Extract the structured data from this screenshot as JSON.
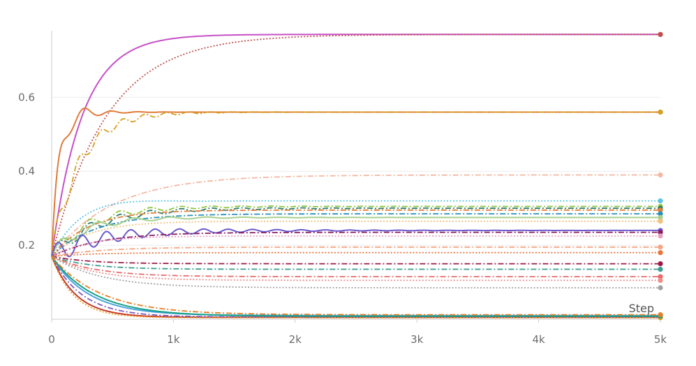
{
  "chart_data": {
    "type": "line",
    "title": "",
    "xlabel": "Step",
    "ylabel": "",
    "xlim": [
      0,
      5000
    ],
    "ylim": [
      0,
      0.78
    ],
    "x_ticks": [
      {
        "value": 0,
        "label": "0"
      },
      {
        "value": 1000,
        "label": "1k"
      },
      {
        "value": 2000,
        "label": "2k"
      },
      {
        "value": 3000,
        "label": "3k"
      },
      {
        "value": 4000,
        "label": "4k"
      },
      {
        "value": 5000,
        "label": "5k"
      }
    ],
    "y_ticks": [
      {
        "value": 0.2,
        "label": "0.2"
      },
      {
        "value": 0.4,
        "label": "0.4"
      },
      {
        "value": 0.6,
        "label": "0.6"
      }
    ],
    "grid": "horizontal",
    "legend": "none",
    "start_value": 0.17,
    "series": [
      {
        "color": "#c64fc6",
        "style": "solid",
        "final": 0.77,
        "tau": 250,
        "peak": 0.0,
        "osc": 0.0,
        "period": 0
      },
      {
        "color": "#c0504d",
        "style": "dotted",
        "final": 0.77,
        "tau": 450,
        "peak": 0.0,
        "osc": 0.0,
        "period": 0
      },
      {
        "color": "#e07b39",
        "style": "solid",
        "final": 0.56,
        "tau": 80,
        "peak": 0.07,
        "osc": 0.06,
        "period": 220
      },
      {
        "color": "#d4a020",
        "style": "dashdot",
        "final": 0.56,
        "tau": 220,
        "peak": 0.0,
        "osc": 0.03,
        "period": 180
      },
      {
        "color": "#f2b8a2",
        "style": "dashdot",
        "final": 0.39,
        "tau": 500,
        "peak": 0.0,
        "osc": 0.0,
        "period": 0
      },
      {
        "color": "#5bc4e6",
        "style": "dotted",
        "final": 0.32,
        "tau": 250,
        "peak": 0.03,
        "osc": 0.0,
        "period": 0
      },
      {
        "color": "#8dc63f",
        "style": "dashdot",
        "final": 0.305,
        "tau": 300,
        "peak": 0.0,
        "osc": 0.02,
        "period": 250
      },
      {
        "color": "#2e7d6b",
        "style": "dashdot",
        "final": 0.3,
        "tau": 350,
        "peak": 0.0,
        "osc": 0.02,
        "period": 250
      },
      {
        "color": "#e0803a",
        "style": "dashdot",
        "final": 0.295,
        "tau": 300,
        "peak": 0.0,
        "osc": 0.0,
        "period": 0
      },
      {
        "color": "#2a8fb8",
        "style": "dashdot",
        "final": 0.285,
        "tau": 350,
        "peak": 0.0,
        "osc": 0.0,
        "period": 0
      },
      {
        "color": "#a8d08d",
        "style": "solid",
        "final": 0.275,
        "tau": 250,
        "peak": 0.0,
        "osc": 0.02,
        "period": 300
      },
      {
        "color": "#f0c27b",
        "style": "dotted",
        "final": 0.265,
        "tau": 300,
        "peak": 0.0,
        "osc": 0.0,
        "period": 0
      },
      {
        "color": "#6a5acd",
        "style": "solid",
        "final": 0.24,
        "tau": 350,
        "peak": 0.0,
        "osc": 0.03,
        "period": 200
      },
      {
        "color": "#8b1c62",
        "style": "dashdot",
        "final": 0.235,
        "tau": 400,
        "peak": 0.0,
        "osc": 0.0,
        "period": 0
      },
      {
        "color": "#e8a0bf",
        "style": "dotted",
        "final": 0.225,
        "tau": 300,
        "peak": 0.0,
        "osc": 0.0,
        "period": 0
      },
      {
        "color": "#f4a582",
        "style": "dashdot",
        "final": 0.195,
        "tau": 400,
        "peak": 0.0,
        "osc": 0.0,
        "period": 0
      },
      {
        "color": "#e8743b",
        "style": "dotted",
        "final": 0.18,
        "tau": 350,
        "peak": 0.0,
        "osc": 0.0,
        "period": 0
      },
      {
        "color": "#9b1b4b",
        "style": "dashdot",
        "final": 0.15,
        "tau": 300,
        "peak": 0.0,
        "osc": 0.0,
        "period": 0
      },
      {
        "color": "#3a9e8d",
        "style": "dashdot",
        "final": 0.135,
        "tau": 300,
        "peak": 0.0,
        "osc": 0.0,
        "period": 0
      },
      {
        "color": "#e86a6a",
        "style": "dashdot",
        "final": 0.115,
        "tau": 350,
        "peak": 0.0,
        "osc": 0.0,
        "period": 0
      },
      {
        "color": "#f08c8c",
        "style": "dotted",
        "final": 0.105,
        "tau": 350,
        "peak": 0.0,
        "osc": 0.0,
        "period": 0
      },
      {
        "color": "#a0a0a0",
        "style": "dotted",
        "final": 0.085,
        "tau": 400,
        "peak": 0.0,
        "osc": 0.0,
        "period": 0
      },
      {
        "color": "#c0392b",
        "style": "solid",
        "final": 0.005,
        "tau": 200,
        "peak": 0.0,
        "osc": 0.0,
        "period": 0
      },
      {
        "color": "#4aa3df",
        "style": "solid",
        "final": 0.01,
        "tau": 300,
        "peak": 0.0,
        "osc": 0.0,
        "period": 0
      },
      {
        "color": "#7e57c2",
        "style": "dashdot",
        "final": 0.006,
        "tau": 250,
        "peak": 0.0,
        "osc": 0.0,
        "period": 0
      },
      {
        "color": "#f39c12",
        "style": "dotted",
        "final": 0.004,
        "tau": 180,
        "peak": 0.0,
        "osc": 0.0,
        "period": 0
      },
      {
        "color": "#16a085",
        "style": "solid",
        "final": 0.008,
        "tau": 350,
        "peak": 0.0,
        "osc": 0.0,
        "period": 0
      },
      {
        "color": "#e67e22",
        "style": "dashdot",
        "final": 0.012,
        "tau": 400,
        "peak": 0.0,
        "osc": 0.0,
        "period": 0
      }
    ]
  }
}
